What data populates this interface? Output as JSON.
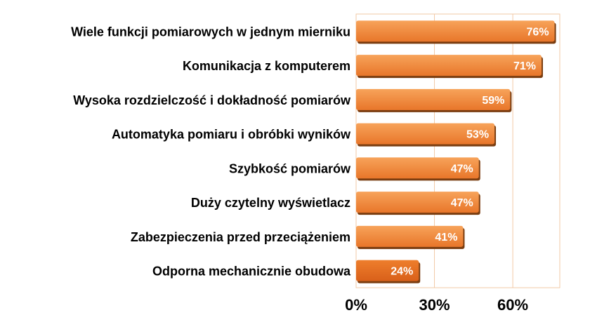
{
  "chart_data": {
    "type": "bar",
    "orientation": "horizontal",
    "title": "",
    "xlabel": "",
    "ylabel": "",
    "categories": [
      "Wiele funkcji pomiarowych w jednym mierniku",
      "Komunikacja z komputerem",
      "Wysoka rozdzielczość i dokładność pomiarów",
      "Automatyka pomiaru i obróbki wyników",
      "Szybkość pomiarów",
      "Duży czytelny wyświetlacz",
      "Zabezpieczenia przed przeciążeniem",
      "Odporna mechanicznie obudowa"
    ],
    "values": [
      76,
      71,
      59,
      53,
      47,
      47,
      41,
      24
    ],
    "value_labels": [
      "76%",
      "71%",
      "59%",
      "53%",
      "47%",
      "47%",
      "41%",
      "24%"
    ],
    "xlim": [
      0,
      78
    ],
    "ticks": [
      0,
      30,
      60
    ],
    "tick_labels": [
      "0%",
      "30%",
      "60%"
    ],
    "grid": true,
    "legend": "none",
    "colors": {
      "bar_top": "#f7a35a",
      "bar_bottom": "#e8762a",
      "bar_shadow": "#7a3d10",
      "gridline": "#f2c9a6",
      "last_bar_top": "#ee7e2c",
      "last_bar_bottom": "#d9601a"
    }
  }
}
